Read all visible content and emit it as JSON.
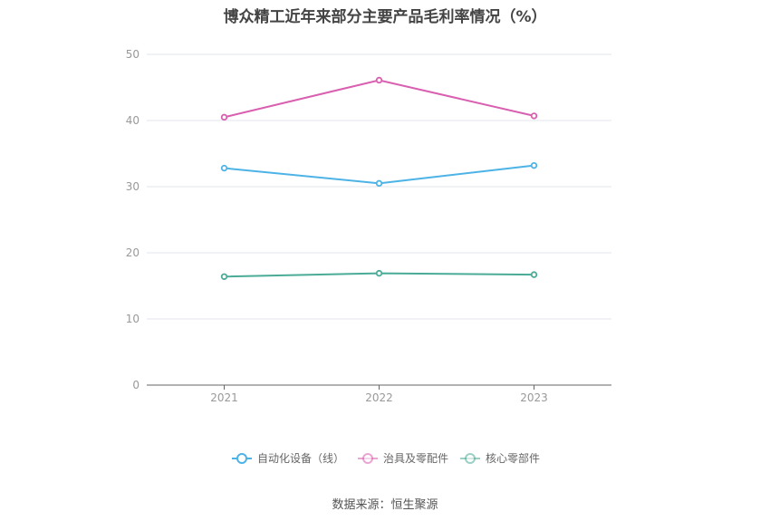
{
  "title": "博众精工近年来部分主要产品毛利率情况（%）",
  "source": "数据来源：恒生聚源",
  "chart_data": {
    "type": "line",
    "title": "博众精工近年来部分主要产品毛利率情况（%）",
    "categories": [
      "2021",
      "2022",
      "2023"
    ],
    "y_ticks": [
      "0",
      "10",
      "20",
      "30",
      "40",
      "50"
    ],
    "ylim": [
      0,
      50
    ],
    "grid": true,
    "legend_position": "bottom",
    "series": [
      {
        "name": "自动化设备（线）",
        "color": "#4db3e6",
        "values": [
          32.8,
          30.5,
          33.2
        ]
      },
      {
        "name": "治具及零配件",
        "color": "#d95fb0",
        "values": [
          40.5,
          46.1,
          40.7
        ]
      },
      {
        "name": "核心零部件",
        "color": "#4aab97",
        "values": [
          16.4,
          16.9,
          16.7
        ]
      }
    ]
  }
}
